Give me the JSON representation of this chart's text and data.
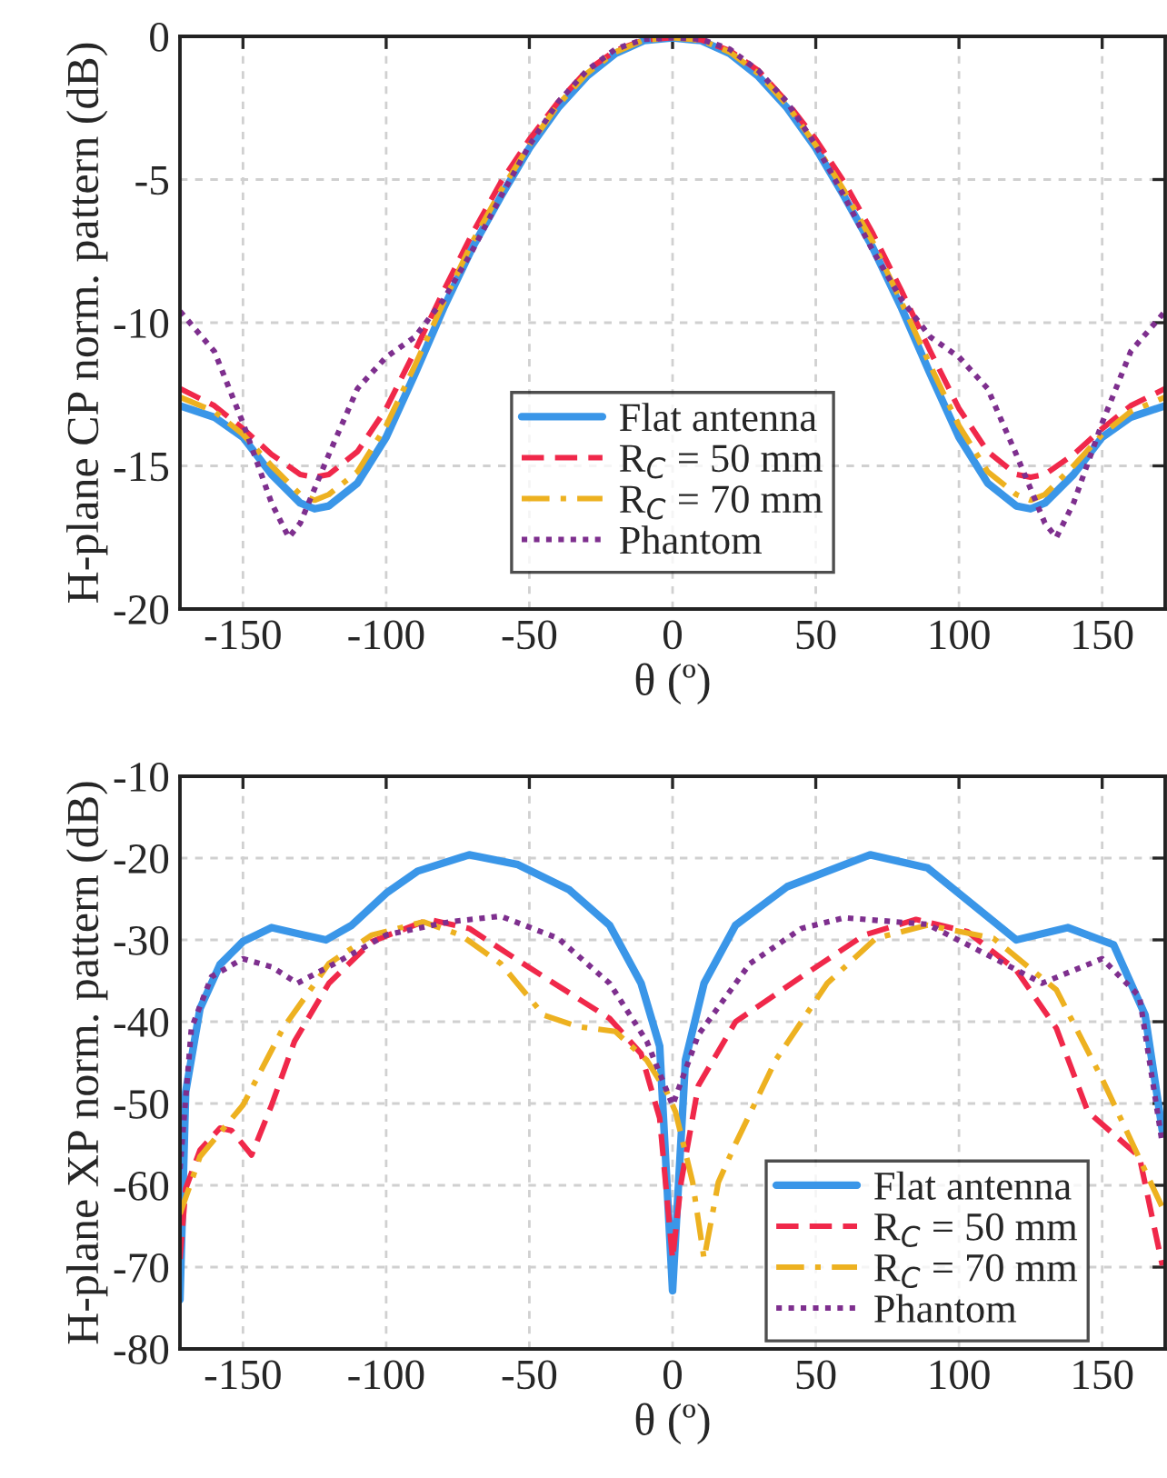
{
  "chart_data": [
    {
      "type": "line",
      "ylabel": "H-plane CP norm. pattern (dB)",
      "xlabel": "θ (º)",
      "xlim": [
        -172,
        172
      ],
      "ylim": [
        -20,
        0
      ],
      "xticks": [
        -150,
        -100,
        -50,
        0,
        50,
        100,
        150
      ],
      "yticks": [
        -20,
        -15,
        -10,
        -5,
        0
      ],
      "grid": true,
      "legend": "bottom",
      "tick_labels": "xy",
      "series": [
        {
          "name": "Flat antenna",
          "color": "#3a96e8",
          "line_style": "solid",
          "x": [
            -172,
            -160,
            -150,
            -140,
            -130,
            -125,
            -120,
            -110,
            -100,
            -90,
            -80,
            -70,
            -60,
            -50,
            -40,
            -30,
            -20,
            -10,
            0,
            10,
            20,
            30,
            40,
            50,
            60,
            70,
            80,
            90,
            100,
            110,
            120,
            125,
            130,
            140,
            150,
            160,
            172
          ],
          "values": [
            -12.9,
            -13.3,
            -14.0,
            -15.3,
            -16.3,
            -16.5,
            -16.4,
            -15.6,
            -14.0,
            -11.8,
            -9.5,
            -7.4,
            -5.6,
            -3.9,
            -2.5,
            -1.4,
            -0.6,
            -0.15,
            -0.05,
            -0.15,
            -0.6,
            -1.4,
            -2.5,
            -3.9,
            -5.6,
            -7.4,
            -9.5,
            -11.8,
            -14.0,
            -15.6,
            -16.4,
            -16.5,
            -16.3,
            -15.3,
            -14.0,
            -13.3,
            -12.9
          ]
        },
        {
          "name": "R$_{C}$ = 50 mm",
          "color": "#f0284a",
          "line_style": "dashed",
          "x": [
            -172,
            -160,
            -150,
            -140,
            -130,
            -125,
            -120,
            -110,
            -100,
            -90,
            -80,
            -70,
            -60,
            -50,
            -40,
            -30,
            -20,
            -10,
            0,
            10,
            20,
            30,
            40,
            50,
            60,
            70,
            80,
            90,
            100,
            110,
            120,
            125,
            130,
            140,
            150,
            160,
            172
          ],
          "values": [
            -12.3,
            -12.9,
            -13.7,
            -14.6,
            -15.3,
            -15.4,
            -15.3,
            -14.5,
            -13.0,
            -11.0,
            -8.9,
            -6.9,
            -5.1,
            -3.6,
            -2.3,
            -1.2,
            -0.5,
            -0.12,
            -0.05,
            -0.12,
            -0.5,
            -1.2,
            -2.3,
            -3.6,
            -5.1,
            -6.9,
            -8.9,
            -11.0,
            -13.0,
            -14.5,
            -15.3,
            -15.4,
            -15.3,
            -14.6,
            -13.7,
            -12.9,
            -12.3
          ]
        },
        {
          "name": "R$_{C}$ = 70 mm",
          "color": "#edb120",
          "line_style": "dashdot",
          "x": [
            -172,
            -160,
            -150,
            -140,
            -130,
            -125,
            -120,
            -110,
            -100,
            -90,
            -80,
            -70,
            -60,
            -50,
            -40,
            -30,
            -20,
            -10,
            0,
            10,
            20,
            30,
            40,
            50,
            60,
            70,
            80,
            90,
            100,
            110,
            120,
            125,
            130,
            140,
            150,
            160,
            172
          ],
          "values": [
            -12.6,
            -13.1,
            -13.9,
            -15.0,
            -16.0,
            -16.2,
            -16.0,
            -15.2,
            -13.6,
            -11.5,
            -9.3,
            -7.2,
            -5.4,
            -3.8,
            -2.4,
            -1.3,
            -0.55,
            -0.13,
            -0.05,
            -0.13,
            -0.55,
            -1.3,
            -2.4,
            -3.8,
            -5.4,
            -7.2,
            -9.3,
            -11.5,
            -13.6,
            -15.2,
            -16.0,
            -16.2,
            -16.0,
            -15.0,
            -13.9,
            -13.1,
            -12.6
          ]
        },
        {
          "name": "Phantom",
          "color": "#7e2f8e",
          "line_style": "dotted",
          "x": [
            -172,
            -160,
            -150,
            -140,
            -134,
            -130,
            -120,
            -110,
            -100,
            -90,
            -80,
            -70,
            -60,
            -50,
            -40,
            -30,
            -20,
            -10,
            0,
            10,
            20,
            30,
            40,
            50,
            60,
            70,
            80,
            90,
            100,
            110,
            120,
            130,
            134,
            140,
            150,
            160,
            172
          ],
          "values": [
            -9.6,
            -11.0,
            -13.5,
            -16.3,
            -17.5,
            -17.0,
            -14.6,
            -12.3,
            -11.2,
            -10.5,
            -9.2,
            -7.5,
            -5.6,
            -3.8,
            -2.3,
            -1.2,
            -0.45,
            -0.1,
            -0.05,
            -0.1,
            -0.45,
            -1.2,
            -2.3,
            -3.8,
            -5.6,
            -7.5,
            -9.2,
            -10.5,
            -11.2,
            -12.3,
            -14.6,
            -17.0,
            -17.5,
            -16.3,
            -13.5,
            -11.0,
            -9.6
          ]
        }
      ]
    },
    {
      "type": "line",
      "ylabel": "H-plane XP norm. pattern (dB)",
      "xlabel": "θ (º)",
      "xlim": [
        -172,
        172
      ],
      "ylim": [
        -80,
        -10
      ],
      "xticks": [
        -150,
        -100,
        -50,
        0,
        50,
        100,
        150
      ],
      "yticks": [
        -80,
        -70,
        -60,
        -50,
        -40,
        -30,
        -20,
        -10
      ],
      "grid": true,
      "legend": "bottom right",
      "tick_labels": "xy",
      "series": [
        {
          "name": "Flat antenna",
          "color": "#3a96e8",
          "line_style": "solid",
          "x": [
            -172,
            -170,
            -165,
            -158,
            -150,
            -140,
            -130,
            -121,
            -112,
            -100,
            -89,
            -71,
            -54,
            -36,
            -22,
            -11,
            -4.5,
            0,
            4.5,
            11,
            22,
            40,
            69,
            89,
            107,
            120,
            138,
            154,
            165,
            171
          ],
          "values": [
            -74,
            -48.6,
            -38.4,
            -33,
            -30.2,
            -28.5,
            -29.3,
            -30,
            -28.2,
            -24.3,
            -21.6,
            -19.6,
            -20.8,
            -23.9,
            -28.2,
            -35.3,
            -43,
            -72.9,
            -44.7,
            -35.3,
            -28.2,
            -23.5,
            -19.6,
            -21.2,
            -26.3,
            -30,
            -28.5,
            -30.6,
            -39.2,
            -53.3
          ]
        },
        {
          "name": "R$_{C}$ = 50 mm",
          "color": "#f0284a",
          "line_style": "dashed",
          "x": [
            -172,
            -170,
            -165,
            -158,
            -154,
            -147,
            -140,
            -132,
            -120,
            -105,
            -85,
            -71,
            -54,
            -36,
            -22,
            -11,
            -4.5,
            0,
            3,
            9,
            22,
            45,
            67,
            85,
            103,
            120,
            134,
            145,
            163,
            171
          ],
          "values": [
            -69,
            -60.4,
            -55.7,
            -53,
            -53.3,
            -56.3,
            -50.2,
            -42.4,
            -35.3,
            -30.2,
            -27.5,
            -28.6,
            -32.5,
            -36.5,
            -39.6,
            -43.9,
            -51.8,
            -69,
            -59.6,
            -47.8,
            -40,
            -34.5,
            -29.4,
            -27.5,
            -29,
            -33.7,
            -40.8,
            -51,
            -56.5,
            -69.8
          ]
        },
        {
          "name": "R$_{C}$ = 70 mm",
          "color": "#edb120",
          "line_style": "dashdot",
          "x": [
            -172,
            -165,
            -150,
            -136,
            -120,
            -105,
            -87,
            -74,
            -60,
            -45,
            -33,
            -20,
            -9,
            -2,
            1,
            7,
            11,
            16,
            22,
            36,
            54,
            71,
            89,
            112,
            134,
            150,
            171
          ],
          "values": [
            -63.5,
            -56.5,
            -50.2,
            -40.8,
            -32.9,
            -29.4,
            -27.8,
            -29.4,
            -32.9,
            -39.2,
            -40.6,
            -41.2,
            -44.7,
            -48.6,
            -51,
            -59.6,
            -69,
            -59.6,
            -54.9,
            -44.7,
            -35.3,
            -29.8,
            -28.2,
            -29.8,
            -36.1,
            -47,
            -62.7
          ]
        },
        {
          "name": "Phantom",
          "color": "#7e2f8e",
          "line_style": "dotted",
          "x": [
            -172,
            -168,
            -161,
            -150,
            -140,
            -131,
            -118,
            -100,
            -78,
            -60,
            -40,
            -22,
            -9,
            0,
            9,
            27,
            45,
            60,
            89,
            112,
            129,
            150,
            163,
            171
          ],
          "values": [
            -58,
            -40.8,
            -34.5,
            -32.3,
            -33.3,
            -35.3,
            -32.9,
            -29.4,
            -27.8,
            -27.1,
            -29.8,
            -35.3,
            -42.4,
            -50.2,
            -41.6,
            -32.9,
            -28.6,
            -27.3,
            -28.1,
            -32.2,
            -35.3,
            -32.3,
            -36.9,
            -54.9
          ]
        }
      ]
    }
  ]
}
